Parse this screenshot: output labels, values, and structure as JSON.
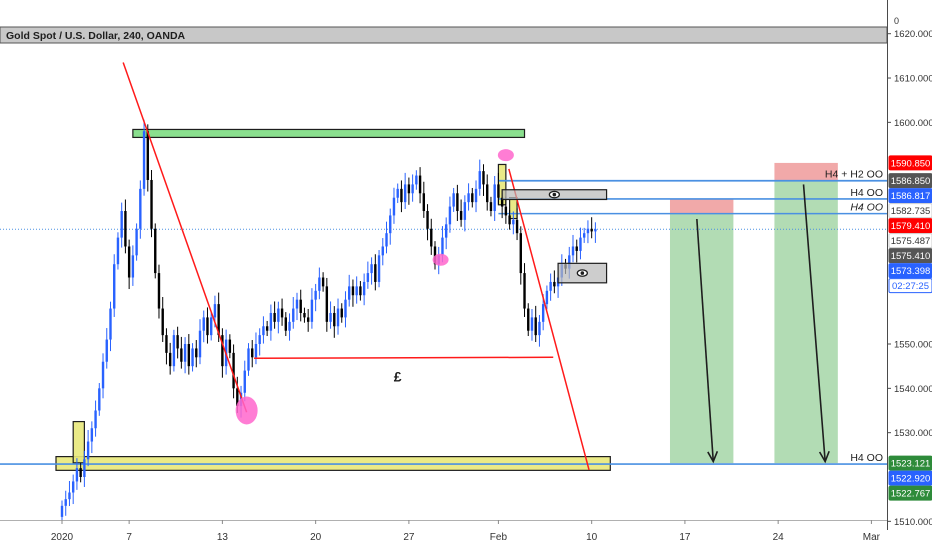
{
  "header": {
    "symbol_title": "Gold Spot / U.S. Dollar, 240, OANDA"
  },
  "chart_data": {
    "type": "candlestick",
    "title": "Gold Spot / U.S. Dollar, 240, OANDA",
    "colors": {
      "up": "#2962ff",
      "down": "#000000",
      "support_zone": "#e8e87a",
      "resistance_zone": "#7ddc82",
      "trendline": "#ff1a1a",
      "level_line": "#4a90e2",
      "target_zone": "#a5d6a7",
      "stop_zone": "#ef9a9a",
      "marker": "#ff66cc"
    },
    "y_axis": {
      "ylim": [
        1510.3,
        1627.6
      ],
      "ticks": [
        {
          "value": 1620,
          "label": "1620.000"
        },
        {
          "value": 1610,
          "label": "1610.000"
        },
        {
          "value": 1600,
          "label": "1600.000"
        },
        {
          "value": 1550,
          "label": "1550.000"
        },
        {
          "value": 1540,
          "label": "1540.000"
        },
        {
          "value": 1530,
          "label": "1530.000"
        },
        {
          "value": 1510,
          "label": "1510.000"
        }
      ],
      "top_label": "0"
    },
    "x_axis": {
      "ticks": [
        {
          "index": 0,
          "label": "2020"
        },
        {
          "index": 18,
          "label": "7"
        },
        {
          "index": 43,
          "label": "13"
        },
        {
          "index": 68,
          "label": "20"
        },
        {
          "index": 93,
          "label": "27"
        },
        {
          "index": 117,
          "label": "Feb"
        },
        {
          "index": 142,
          "label": "10"
        },
        {
          "index": 167,
          "label": "17"
        },
        {
          "index": 192,
          "label": "24"
        },
        {
          "index": 217,
          "label": "Mar"
        }
      ]
    },
    "price_tags": [
      {
        "value": 1590.85,
        "label": "1590.850",
        "color": "#ff0000"
      },
      {
        "value": 1586.85,
        "label": "1586.850",
        "color": "#555555"
      },
      {
        "value": 1586.817,
        "label": "1586.817",
        "color": "#2962ff"
      },
      {
        "value": 1582.735,
        "label": "1582.735",
        "color": "#ffffff",
        "text_color": "#333333"
      },
      {
        "value": 1579.41,
        "label": "1579.410",
        "color": "#ff0000"
      },
      {
        "value": 1575.487,
        "label": "1575.487",
        "color": "#ffffff",
        "text_color": "#333333"
      },
      {
        "value": 1575.41,
        "label": "1575.410",
        "color": "#555555"
      },
      {
        "value": 1573.398,
        "label": "1573.398",
        "color": "#2962ff"
      },
      {
        "value": 1568.3,
        "label": "02:27:25",
        "color": "#ffffff",
        "text_color": "#2962ff",
        "border": "#2962ff"
      },
      {
        "value": 1523.121,
        "label": "1523.121",
        "color": "#2e8b3a"
      },
      {
        "value": 1522.92,
        "label": "1522.920",
        "color": "#2962ff"
      },
      {
        "value": 1522.767,
        "label": "1522.767",
        "color": "#2e8b3a"
      }
    ],
    "level_lines": [
      {
        "value": 1586.85,
        "start_index": 117,
        "label": "H4 + H2 OO",
        "label_style": "normal"
      },
      {
        "value": 1586.817,
        "start_index": 117,
        "label": "",
        "label_style": "normal"
      },
      {
        "value": 1582.735,
        "start_index": 117,
        "label": "H4 OO",
        "label_style": "normal"
      },
      {
        "value": 1579.41,
        "start_index": 117,
        "label": "H4 OO",
        "label_style": "italic"
      },
      {
        "value": 1522.92,
        "start_index": -1,
        "label": "H4 OO",
        "label_style": "normal"
      }
    ],
    "current_price_line": {
      "value": 1575.9
    },
    "zones": [
      {
        "kind": "support",
        "from_index": -1,
        "to_index": 147,
        "low": 1521.5,
        "high": 1524.6
      },
      {
        "kind": "resistance",
        "from_index": 19,
        "to_index": 124,
        "low": 1596.6,
        "high": 1598.4
      },
      {
        "kind": "flag",
        "from_index": 3,
        "to_index": 6,
        "low": 1523.2,
        "high": 1532.5
      },
      {
        "kind": "flag",
        "from_index": 117,
        "to_index": 119,
        "low": 1581.4,
        "high": 1590.5
      },
      {
        "kind": "flag",
        "from_index": 120,
        "to_index": 122,
        "low": 1578.3,
        "high": 1583.0
      }
    ],
    "annotation_boxes": [
      {
        "from_index": 118,
        "to_index": 146,
        "low": 1582.6,
        "high": 1584.8,
        "icon": "eye"
      },
      {
        "from_index": 133,
        "to_index": 146,
        "low": 1563.8,
        "high": 1568.2,
        "icon": "eye"
      }
    ],
    "positions": [
      {
        "from_index": 163,
        "to_index": 180,
        "entry": 1579.41,
        "stop": 1582.735,
        "target": 1523.121
      },
      {
        "from_index": 191,
        "to_index": 208,
        "entry": 1586.85,
        "stop": 1590.85,
        "target": 1523.121
      }
    ],
    "trendlines": [
      {
        "color": "red",
        "from": [
          16.4,
          1613.5
        ],
        "to": [
          49.5,
          1534.6
        ]
      },
      {
        "color": "red",
        "from": [
          119.8,
          1589.5
        ],
        "to": [
          141.3,
          1521.6
        ]
      },
      {
        "color": "red",
        "from": [
          51.5,
          1546.8
        ],
        "to": [
          131.7,
          1547.0
        ]
      }
    ],
    "markers": [
      {
        "index": 49.5,
        "value": 1535.0,
        "size": "large"
      },
      {
        "index": 101.5,
        "value": 1569.0,
        "size": "small"
      },
      {
        "index": 119,
        "value": 1592.6,
        "size": "small"
      }
    ],
    "currency_label": {
      "text": "£",
      "index": 90,
      "value": 1541.5
    },
    "arrows": [
      {
        "from": [
          170.2,
          1578.2
        ],
        "to": [
          174.6,
          1523.5
        ]
      },
      {
        "from": [
          198.8,
          1586.0
        ],
        "to": [
          204.6,
          1523.5
        ]
      }
    ],
    "candles": {
      "start": 1511.0,
      "closes": [
        1513.5,
        1515.0,
        1516.5,
        1519.0,
        1522.0,
        1520.0,
        1524.0,
        1528.0,
        1531.0,
        1535.0,
        1540.0,
        1546.0,
        1551.0,
        1558.0,
        1568.0,
        1574.0,
        1580.0,
        1572.0,
        1565.0,
        1570.0,
        1576.0,
        1585.0,
        1598.0,
        1587.0,
        1576.0,
        1566.0,
        1558.0,
        1552.0,
        1548.0,
        1545.0,
        1552.0,
        1549.0,
        1546.0,
        1550.0,
        1545.0,
        1549.0,
        1547.0,
        1553.0,
        1556.0,
        1552.0,
        1556.0,
        1559.0,
        1552.0,
        1545.0,
        1551.0,
        1548.0,
        1540.0,
        1536.0,
        1539.0,
        1544.0,
        1549.0,
        1547.0,
        1550.0,
        1552.0,
        1554.0,
        1553.0,
        1557.0,
        1555.0,
        1558.0,
        1556.0,
        1553.0,
        1555.0,
        1558.0,
        1560.0,
        1557.0,
        1556.0,
        1555.0,
        1560.0,
        1562.0,
        1565.0,
        1563.0,
        1555.0,
        1557.0,
        1554.0,
        1558.0,
        1556.0,
        1560.0,
        1563.0,
        1561.0,
        1563.0,
        1561.0,
        1564.0,
        1566.0,
        1568.0,
        1564.0,
        1570.0,
        1572.0,
        1575.0,
        1579.0,
        1583.0,
        1585.0,
        1582.0,
        1586.0,
        1584.0,
        1586.0,
        1588.0,
        1584.0,
        1580.0,
        1576.0,
        1572.0,
        1568.0,
        1570.0,
        1574.0,
        1577.0,
        1581.0,
        1584.0,
        1580.0,
        1578.0,
        1582.0,
        1584.0,
        1582.0,
        1585.0,
        1589.0,
        1586.0,
        1582.0,
        1580.0,
        1586.0,
        1583.0,
        1581.0,
        1579.0,
        1577.0,
        1578.0,
        1575.0,
        1566.0,
        1558.0,
        1553.0,
        1556.0,
        1552.0,
        1555.0,
        1559.0,
        1562.0,
        1564.0,
        1563.0,
        1565.0,
        1568.0,
        1567.0,
        1570.0,
        1572.0,
        1571.0,
        1574.0,
        1575.0,
        1576.0,
        1575.4,
        1575.9
      ]
    }
  }
}
